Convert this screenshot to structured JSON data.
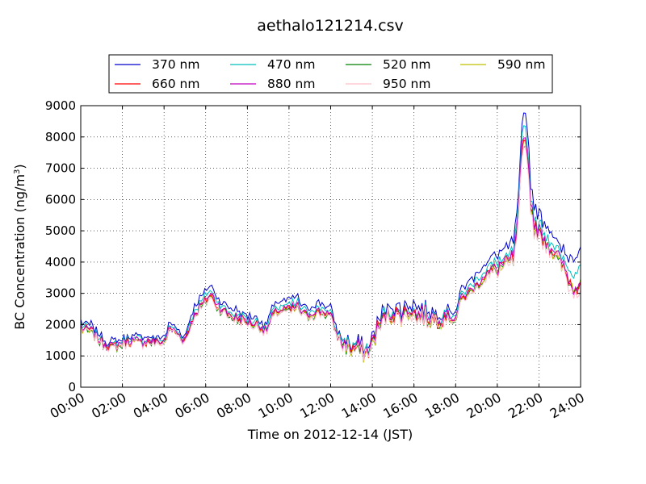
{
  "chart_data": {
    "type": "line",
    "title": "aethalo121214.csv",
    "xlabel": "Time on 2012-12-14 (JST)",
    "ylabel_main": "BC Concentration (ng/m",
    "ylabel_sup": "3",
    "ylabel_close": ")",
    "xlim": [
      0,
      24
    ],
    "ylim": [
      0,
      9000
    ],
    "x_ticks": [
      {
        "hour": 0,
        "label": "00:00"
      },
      {
        "hour": 2,
        "label": "02:00"
      },
      {
        "hour": 4,
        "label": "04:00"
      },
      {
        "hour": 6,
        "label": "06:00"
      },
      {
        "hour": 8,
        "label": "08:00"
      },
      {
        "hour": 10,
        "label": "10:00"
      },
      {
        "hour": 12,
        "label": "12:00"
      },
      {
        "hour": 14,
        "label": "14:00"
      },
      {
        "hour": 16,
        "label": "16:00"
      },
      {
        "hour": 18,
        "label": "18:00"
      },
      {
        "hour": 20,
        "label": "20:00"
      },
      {
        "hour": 22,
        "label": "22:00"
      },
      {
        "hour": 24,
        "label": "24:00"
      }
    ],
    "y_ticks": [
      {
        "value": 0,
        "label": "0"
      },
      {
        "value": 1000,
        "label": "1000"
      },
      {
        "value": 2000,
        "label": "2000"
      },
      {
        "value": 3000,
        "label": "3000"
      },
      {
        "value": 4000,
        "label": "4000"
      },
      {
        "value": 5000,
        "label": "5000"
      },
      {
        "value": 6000,
        "label": "6000"
      },
      {
        "value": 7000,
        "label": "7000"
      },
      {
        "value": 8000,
        "label": "8000"
      },
      {
        "value": 9000,
        "label": "9000"
      }
    ],
    "grid": true,
    "legend_position": "top",
    "legend_columns": 4,
    "series": [
      {
        "name": "370 nm",
        "color": "#0000cc",
        "factor": 1.1,
        "end_boost": 900
      },
      {
        "name": "470 nm",
        "color": "#00bfbf",
        "factor": 1.04,
        "end_boost": 500
      },
      {
        "name": "520 nm",
        "color": "#007f00",
        "factor": 0.97,
        "end_boost": 150
      },
      {
        "name": "590 nm",
        "color": "#bfbf00",
        "factor": 0.98,
        "end_boost": 100
      },
      {
        "name": "660 nm",
        "color": "#ff0000",
        "factor": 0.99,
        "end_boost": 0
      },
      {
        "name": "880 nm",
        "color": "#bf00bf",
        "factor": 1.0,
        "end_boost": 0
      },
      {
        "name": "950 nm",
        "color": "#ffc0cb",
        "factor": 0.96,
        "end_boost": -100
      }
    ],
    "base_profile": {
      "x": [
        0.0,
        0.5,
        0.8,
        1.0,
        1.5,
        2.0,
        2.3,
        2.6,
        3.0,
        3.3,
        3.6,
        4.0,
        4.3,
        4.6,
        5.0,
        5.3,
        5.6,
        5.9,
        6.2,
        6.6,
        7.0,
        7.3,
        7.6,
        8.0,
        8.5,
        8.9,
        9.2,
        9.5,
        10.0,
        10.4,
        10.8,
        11.2,
        11.6,
        12.0,
        12.3,
        12.6,
        13.0,
        13.3,
        13.6,
        13.9,
        14.2,
        14.6,
        15.0,
        15.4,
        15.8,
        16.2,
        16.6,
        17.0,
        17.5,
        18.0,
        18.3,
        18.7,
        19.0,
        19.4,
        19.8,
        20.2,
        20.5,
        20.8,
        21.0,
        21.2,
        21.4,
        21.6,
        21.8,
        22.0,
        22.4,
        22.8,
        23.2,
        23.6,
        24.0
      ],
      "y": [
        1900,
        1800,
        1600,
        1450,
        1300,
        1400,
        1500,
        1450,
        1450,
        1500,
        1450,
        1450,
        1900,
        1750,
        1500,
        2100,
        2500,
        2700,
        3000,
        2600,
        2400,
        2300,
        2200,
        2100,
        2000,
        1800,
        2300,
        2500,
        2500,
        2600,
        2300,
        2400,
        2450,
        2300,
        1700,
        1400,
        1250,
        1300,
        1100,
        1250,
        1800,
        2300,
        2400,
        2300,
        2500,
        2300,
        2300,
        2200,
        2300,
        2200,
        2900,
        3100,
        3300,
        3600,
        3800,
        3900,
        4000,
        4200,
        5400,
        7700,
        8100,
        6000,
        5100,
        5000,
        4700,
        4300,
        3800,
        3200,
        3400
      ]
    }
  }
}
